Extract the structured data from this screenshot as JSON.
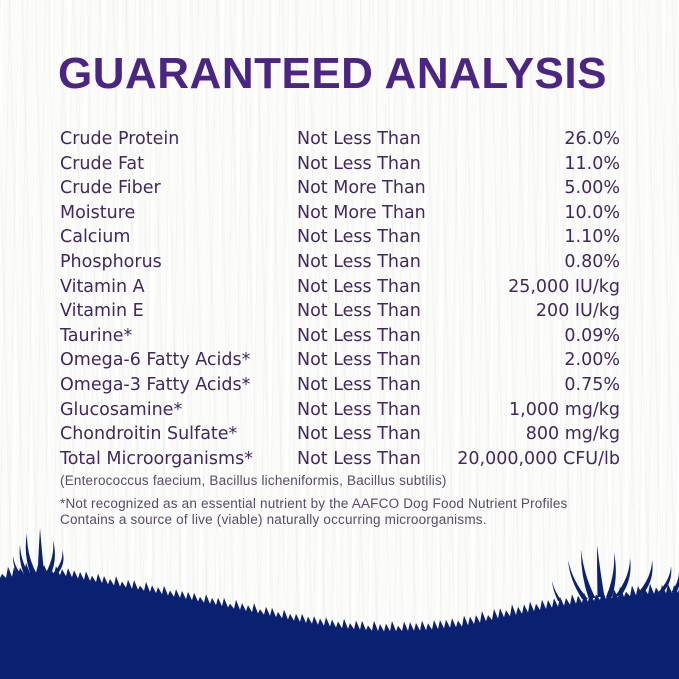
{
  "title": "GUARANTEED ANALYSIS",
  "table": {
    "rows": [
      {
        "nutrient": "Crude Protein",
        "qualifier": "Not Less Than",
        "value": "26.0%"
      },
      {
        "nutrient": "Crude Fat",
        "qualifier": "Not Less Than",
        "value": "11.0%"
      },
      {
        "nutrient": "Crude Fiber",
        "qualifier": "Not More Than",
        "value": "5.00%"
      },
      {
        "nutrient": "Moisture",
        "qualifier": "Not More Than",
        "value": "10.0%"
      },
      {
        "nutrient": "Calcium",
        "qualifier": "Not Less Than",
        "value": "1.10%"
      },
      {
        "nutrient": "Phosphorus",
        "qualifier": "Not Less Than",
        "value": "0.80%"
      },
      {
        "nutrient": "Vitamin A",
        "qualifier": "Not Less Than",
        "value": "25,000 IU/kg"
      },
      {
        "nutrient": "Vitamin E",
        "qualifier": "Not Less Than",
        "value": "200 IU/kg"
      },
      {
        "nutrient": "Taurine*",
        "qualifier": "Not Less Than",
        "value": "0.09%"
      },
      {
        "nutrient": "Omega-6 Fatty Acids*",
        "qualifier": "Not Less Than",
        "value": "2.00%"
      },
      {
        "nutrient": "Omega-3 Fatty Acids*",
        "qualifier": "Not Less Than",
        "value": "0.75%"
      },
      {
        "nutrient": "Glucosamine*",
        "qualifier": "Not Less Than",
        "value": "1,000 mg/kg"
      },
      {
        "nutrient": "Chondroitin Sulfate*",
        "qualifier": "Not Less Than",
        "value": "800 mg/kg"
      },
      {
        "nutrient": "Total Microorganisms*",
        "qualifier": "Not Less Than",
        "value": "20,000,000 CFU/lb"
      }
    ]
  },
  "notes": {
    "species": "(Enterococcus faecium, Bacillus licheniformis, Bacillus subtilis)",
    "footnote_line1": "*Not recognized as an essential nutrient by the AAFCO Dog Food Nutrient Profiles",
    "footnote_line2": "Contains a source of live (viable) naturally occurring microorganisms."
  },
  "colors": {
    "heading": "#4b2583",
    "body_text": "#41285f",
    "note_text": "#594a6b",
    "grass": "#0a2071",
    "background": "#fbfbf9"
  }
}
